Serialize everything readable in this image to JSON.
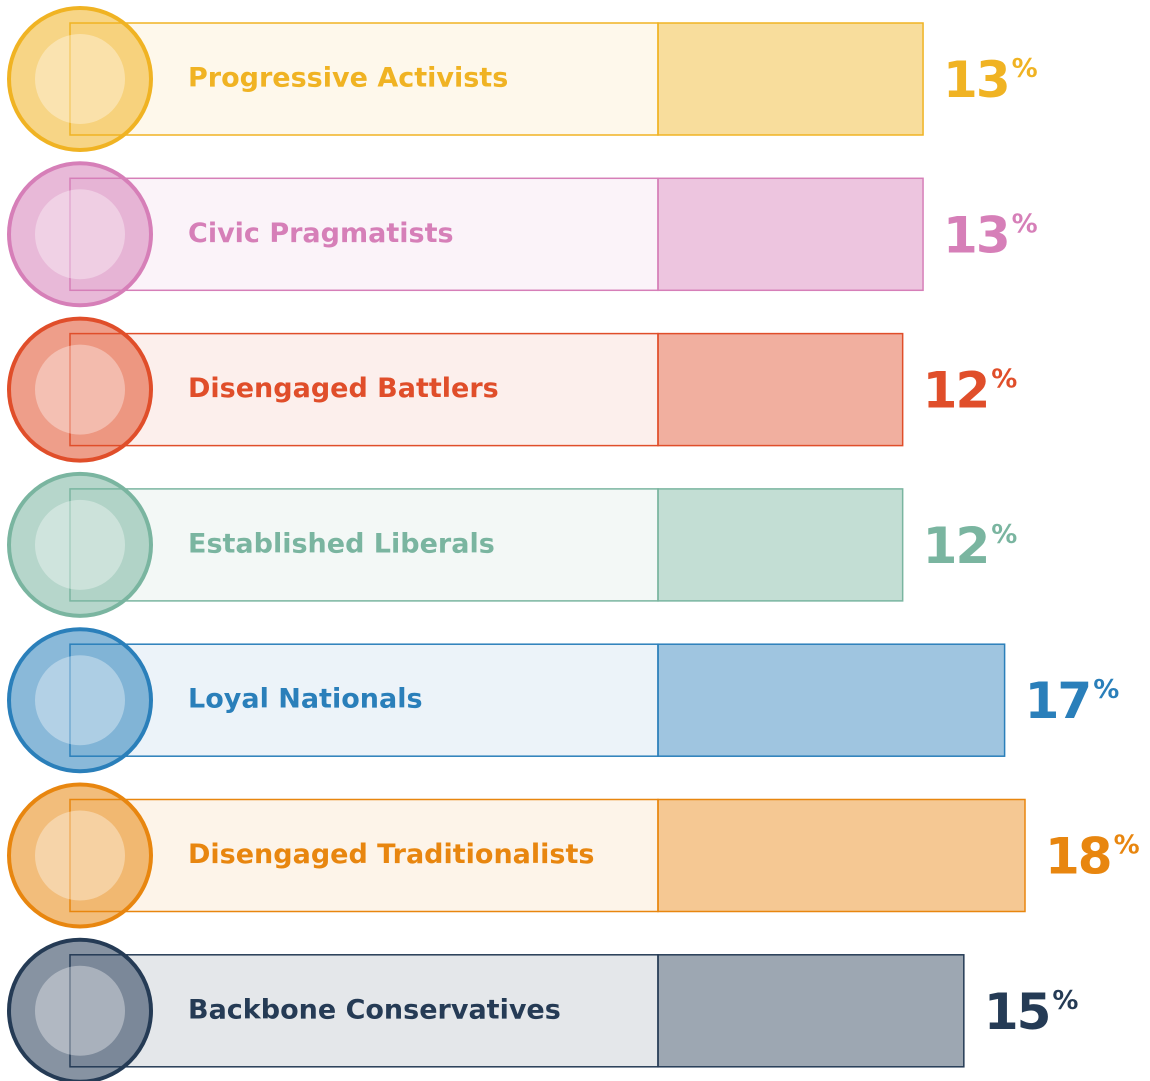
{
  "chart_data": {
    "type": "bar",
    "orientation": "horizontal",
    "categories": [
      "Progressive Activists",
      "Civic Pragmatists",
      "Disengaged Battlers",
      "Established Liberals",
      "Loyal Nationals",
      "Disengaged Traditionalists",
      "Backbone Conservatives"
    ],
    "values": [
      13,
      13,
      12,
      12,
      17,
      18,
      15
    ],
    "value_labels": [
      "13%",
      "13%",
      "12%",
      "12%",
      "17%",
      "18%",
      "15%"
    ],
    "colors": [
      "#f0b323",
      "#d67fb8",
      "#e04e2a",
      "#7ab5a0",
      "#2a7fba",
      "#e8860f",
      "#253b55"
    ],
    "xlim": [
      0,
      18
    ]
  }
}
